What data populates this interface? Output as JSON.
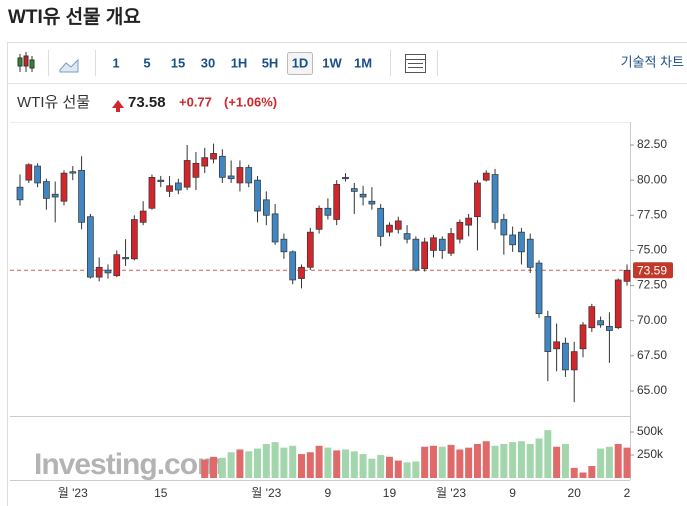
{
  "chart_data": {
    "type": "candlestick",
    "title": "WTI유 선물 개요",
    "intervals": [
      "1",
      "5",
      "15",
      "30",
      "1H",
      "5H",
      "1D",
      "1W",
      "1M"
    ],
    "selected_interval": "1D",
    "technical_chart": "기술적 차트",
    "quote": {
      "name": "WTI유 선물",
      "price": "73.58",
      "change": "+0.77",
      "change_pct": "(+1.06%)"
    },
    "watermark": "Investing.com",
    "categories": [
      null,
      null,
      null,
      null,
      null,
      null,
      "월 '23",
      null,
      null,
      null,
      null,
      null,
      null,
      null,
      null,
      null,
      "15",
      null,
      null,
      null,
      null,
      null,
      null,
      null,
      null,
      null,
      null,
      null,
      "월 '23",
      null,
      null,
      null,
      null,
      null,
      null,
      "9",
      null,
      null,
      null,
      null,
      null,
      null,
      "19",
      null,
      null,
      null,
      null,
      null,
      null,
      "월 '23",
      null,
      null,
      null,
      null,
      null,
      null,
      "9",
      null,
      null,
      null,
      null,
      null,
      null,
      "20",
      null,
      null,
      null,
      null,
      null,
      "2"
    ],
    "open": [
      79.5,
      80.0,
      81.0,
      79.9,
      79.0,
      78.5,
      80.6,
      80.7,
      77.4,
      73.1,
      73.6,
      73.2,
      74.5,
      74.4,
      77.0,
      78.0,
      80.0,
      79.2,
      79.8,
      79.5,
      80.2,
      81.0,
      81.5,
      81.7,
      80.3,
      79.8,
      80.9,
      80.0,
      78.6,
      77.6,
      75.8,
      74.9,
      73.0,
      73.8,
      76.5,
      78.0,
      77.2,
      80.2,
      79.4,
      79.0,
      78.5,
      78.0,
      76.3,
      76.5,
      76.2,
      75.8,
      73.7,
      75.0,
      75.8,
      74.8,
      75.8,
      76.8,
      77.4,
      80.0,
      80.4,
      77.2,
      76.1,
      76.3,
      75.8,
      74.1,
      70.3,
      68.0,
      68.4,
      66.5,
      68.0,
      69.5,
      70.0,
      69.6,
      69.5,
      72.8
    ],
    "high": [
      80.4,
      81.2,
      81.2,
      80.1,
      79.9,
      80.7,
      81.0,
      81.7,
      77.6,
      74.5,
      74.0,
      75.0,
      75.8,
      77.5,
      78.5,
      80.4,
      80.3,
      80.3,
      80.1,
      82.5,
      82.0,
      82.3,
      82.6,
      82.2,
      81.4,
      81.4,
      81.1,
      80.3,
      79.2,
      78.3,
      76.2,
      75.0,
      74.0,
      76.6,
      78.2,
      78.7,
      80.0,
      80.5,
      79.8,
      79.6,
      79.5,
      78.3,
      77.0,
      77.4,
      76.8,
      76.0,
      75.9,
      76.1,
      76.0,
      76.6,
      77.2,
      77.6,
      80.0,
      80.7,
      80.8,
      77.6,
      76.7,
      76.6,
      76.2,
      74.3,
      70.7,
      69.8,
      68.8,
      68.5,
      69.9,
      71.2,
      70.3,
      70.6,
      73.0,
      74.0
    ],
    "low": [
      78.2,
      79.8,
      79.5,
      77.9,
      77.0,
      78.2,
      80.0,
      76.5,
      73.0,
      72.8,
      73.0,
      73.1,
      73.9,
      74.3,
      76.8,
      77.9,
      79.5,
      78.8,
      79.0,
      79.3,
      79.3,
      80.5,
      81.2,
      79.8,
      79.8,
      79.2,
      79.5,
      77.0,
      76.8,
      75.4,
      74.4,
      72.6,
      72.3,
      73.6,
      76.2,
      77.2,
      76.8,
      79.9,
      77.6,
      78.2,
      77.9,
      75.3,
      76.0,
      76.2,
      75.5,
      73.5,
      73.5,
      74.5,
      74.4,
      74.6,
      75.5,
      76.0,
      75.0,
      79.9,
      76.5,
      74.7,
      74.9,
      74.0,
      73.4,
      70.2,
      65.7,
      66.4,
      66.0,
      64.2,
      67.4,
      69.2,
      69.5,
      67.0,
      69.4,
      72.5
    ],
    "close": [
      78.6,
      81.1,
      79.8,
      78.7,
      78.8,
      80.5,
      80.5,
      77.0,
      73.1,
      73.8,
      73.4,
      74.7,
      74.4,
      77.2,
      77.8,
      80.2,
      79.9,
      79.6,
      79.3,
      81.4,
      81.2,
      81.6,
      81.9,
      80.2,
      80.1,
      80.9,
      79.8,
      77.8,
      77.5,
      75.6,
      74.9,
      72.9,
      73.8,
      76.3,
      78.0,
      77.5,
      79.7,
      80.1,
      79.2,
      78.8,
      78.3,
      76.0,
      76.8,
      77.1,
      75.8,
      73.6,
      75.6,
      75.9,
      75.0,
      76.2,
      77.0,
      77.3,
      79.8,
      80.5,
      77.0,
      76.1,
      75.4,
      74.9,
      73.8,
      70.5,
      67.8,
      68.5,
      66.5,
      67.8,
      69.7,
      71.0,
      69.7,
      69.3,
      72.9,
      73.58
    ],
    "volume": [
      null,
      null,
      null,
      null,
      null,
      null,
      null,
      null,
      null,
      null,
      null,
      null,
      null,
      null,
      null,
      null,
      null,
      null,
      null,
      null,
      null,
      200000,
      230000,
      220000,
      280000,
      310000,
      290000,
      320000,
      370000,
      390000,
      330000,
      350000,
      260000,
      280000,
      350000,
      330000,
      300000,
      310000,
      290000,
      260000,
      210000,
      250000,
      230000,
      190000,
      170000,
      180000,
      340000,
      350000,
      340000,
      360000,
      310000,
      330000,
      370000,
      400000,
      350000,
      370000,
      390000,
      400000,
      370000,
      430000,
      520000,
      340000,
      370000,
      110000,
      60000,
      130000,
      320000,
      340000,
      370000,
      330000
    ],
    "up_color": "#d0262c",
    "down_color": "#3f86c2",
    "volume_up_color": "#e06a6a",
    "volume_down_color": "#a3d6ad",
    "price_line": {
      "value": 73.59,
      "label": "73.59"
    },
    "price_line_color": "#c0392b",
    "ylim": [
      63.22,
      83.71
    ],
    "yticks": [
      {
        "value": 82.5,
        "label": "82.50"
      },
      {
        "value": 80,
        "label": "80.00"
      },
      {
        "value": 77.5,
        "label": "77.50"
      },
      {
        "value": 75,
        "label": "75.00"
      },
      {
        "value": 72.5,
        "label": "72.50"
      },
      {
        "value": 70,
        "label": "70.00"
      },
      {
        "value": 67.5,
        "label": "67.50"
      },
      {
        "value": 65,
        "label": "65.00"
      }
    ],
    "y2lim": [
      0,
      674000
    ],
    "y2ticks": [
      {
        "value": 500000,
        "label": "500k"
      },
      {
        "value": 250000,
        "label": "250k"
      }
    ]
  }
}
